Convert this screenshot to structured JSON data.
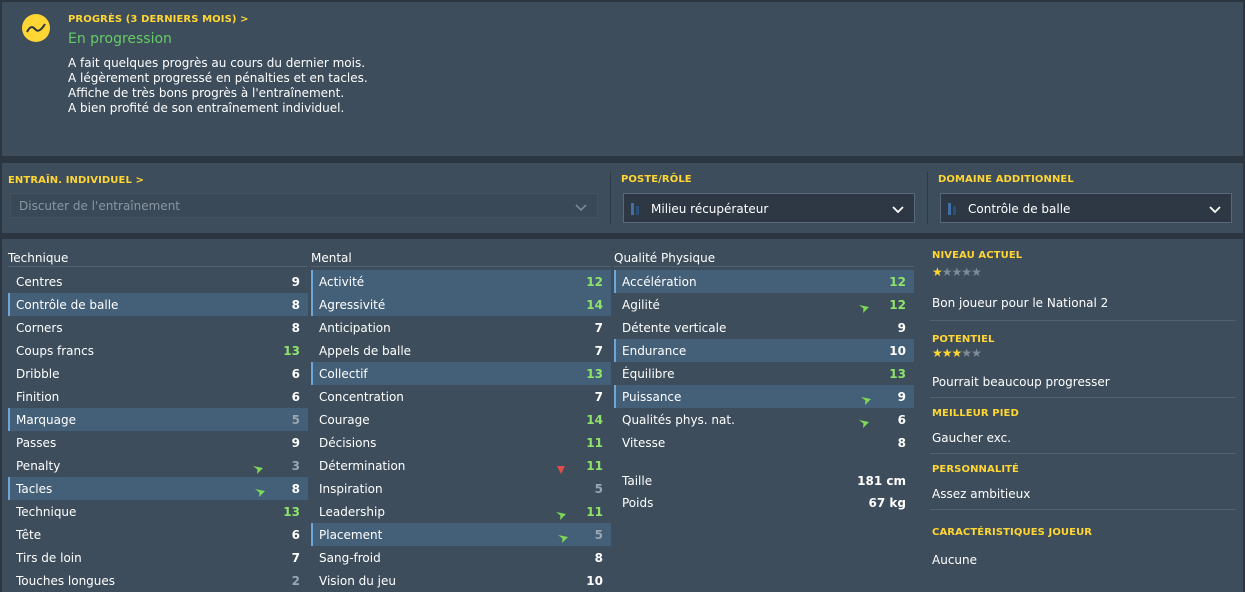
{
  "progress": {
    "header": "PROGRÈS (3 DERNIERS MOIS) >",
    "status": "En progression",
    "lines": [
      "A fait quelques progrès au cours du dernier mois.",
      "A légèrement progressé en pénalties et en tacles.",
      "Affiche de très bons progrès à l'entraînement.",
      "A bien profité de son entraînement individuel."
    ],
    "icon": "trend-chart-icon"
  },
  "training": {
    "individual_header": "ENTRAÎN. INDIVIDUEL >",
    "individual_placeholder": "Discuter de l'entraînement",
    "role_header": "POSTE/RÔLE",
    "role_value": "Milieu récupérateur",
    "field_header": "DOMAINE ADDITIONNEL",
    "field_value": "Contrôle de balle"
  },
  "attributes": {
    "technical": {
      "title": "Technique",
      "rows": [
        {
          "label": "Centres",
          "value": "9",
          "hl": false,
          "arrow": ""
        },
        {
          "label": "Contrôle de balle",
          "value": "8",
          "hl": true,
          "arrow": ""
        },
        {
          "label": "Corners",
          "value": "8",
          "hl": false,
          "arrow": ""
        },
        {
          "label": "Coups francs",
          "value": "13",
          "hl": false,
          "arrow": ""
        },
        {
          "label": "Dribble",
          "value": "6",
          "hl": false,
          "arrow": ""
        },
        {
          "label": "Finition",
          "value": "6",
          "hl": false,
          "arrow": ""
        },
        {
          "label": "Marquage",
          "value": "5",
          "hl": true,
          "arrow": ""
        },
        {
          "label": "Passes",
          "value": "9",
          "hl": false,
          "arrow": ""
        },
        {
          "label": "Penalty",
          "value": "3",
          "hl": false,
          "arrow": "up"
        },
        {
          "label": "Tacles",
          "value": "8",
          "hl": true,
          "arrow": "up"
        },
        {
          "label": "Technique",
          "value": "13",
          "hl": false,
          "arrow": ""
        },
        {
          "label": "Tête",
          "value": "6",
          "hl": false,
          "arrow": ""
        },
        {
          "label": "Tirs de loin",
          "value": "7",
          "hl": false,
          "arrow": ""
        },
        {
          "label": "Touches longues",
          "value": "2",
          "hl": false,
          "arrow": ""
        }
      ]
    },
    "mental": {
      "title": "Mental",
      "rows": [
        {
          "label": "Activité",
          "value": "12",
          "hl": true,
          "arrow": ""
        },
        {
          "label": "Agressivité",
          "value": "14",
          "hl": true,
          "arrow": ""
        },
        {
          "label": "Anticipation",
          "value": "7",
          "hl": false,
          "arrow": ""
        },
        {
          "label": "Appels de balle",
          "value": "7",
          "hl": false,
          "arrow": ""
        },
        {
          "label": "Collectif",
          "value": "13",
          "hl": true,
          "arrow": ""
        },
        {
          "label": "Concentration",
          "value": "7",
          "hl": false,
          "arrow": ""
        },
        {
          "label": "Courage",
          "value": "14",
          "hl": false,
          "arrow": ""
        },
        {
          "label": "Décisions",
          "value": "11",
          "hl": false,
          "arrow": ""
        },
        {
          "label": "Détermination",
          "value": "11",
          "hl": false,
          "arrow": "down"
        },
        {
          "label": "Inspiration",
          "value": "5",
          "hl": false,
          "arrow": ""
        },
        {
          "label": "Leadership",
          "value": "11",
          "hl": false,
          "arrow": "up"
        },
        {
          "label": "Placement",
          "value": "5",
          "hl": true,
          "arrow": "up"
        },
        {
          "label": "Sang-froid",
          "value": "8",
          "hl": false,
          "arrow": ""
        },
        {
          "label": "Vision du jeu",
          "value": "10",
          "hl": false,
          "arrow": ""
        }
      ]
    },
    "physical": {
      "title": "Qualité Physique",
      "rows": [
        {
          "label": "Accélération",
          "value": "12",
          "hl": true,
          "arrow": ""
        },
        {
          "label": "Agilité",
          "value": "12",
          "hl": false,
          "arrow": "up"
        },
        {
          "label": "Détente verticale",
          "value": "9",
          "hl": false,
          "arrow": ""
        },
        {
          "label": "Endurance",
          "value": "10",
          "hl": true,
          "arrow": ""
        },
        {
          "label": "Équilibre",
          "value": "13",
          "hl": false,
          "arrow": ""
        },
        {
          "label": "Puissance",
          "value": "9",
          "hl": true,
          "arrow": "up"
        },
        {
          "label": "Qualités phys. nat.",
          "value": "6",
          "hl": false,
          "arrow": "up"
        },
        {
          "label": "Vitesse",
          "value": "8",
          "hl": false,
          "arrow": ""
        }
      ],
      "height_label": "Taille",
      "height_value": "181 cm",
      "weight_label": "Poids",
      "weight_value": "67 kg"
    }
  },
  "side": {
    "current_header": "NIVEAU ACTUEL",
    "current_stars": 1,
    "current_text": "Bon joueur pour le National 2",
    "potential_header": "POTENTIEL",
    "potential_stars": 3,
    "potential_text": "Pourrait beaucoup progresser",
    "foot_header": "MEILLEUR PIED",
    "foot_text": "Gaucher exc.",
    "personality_header": "PERSONNALITÉ",
    "personality_text": "Assez ambitieux",
    "traits_header": "CARACTÉRISTIQUES JOUEUR",
    "traits_text": "Aucune"
  },
  "colors": {
    "accent": "#ffd633",
    "value_green": "#8fe36b",
    "value_white": "#ffffff",
    "value_dim": "#9aa7b3",
    "arrow_up": "#7ed956",
    "arrow_down": "#e04b4b",
    "star_on": "#ffd633",
    "star_off": "#7f8b96"
  }
}
